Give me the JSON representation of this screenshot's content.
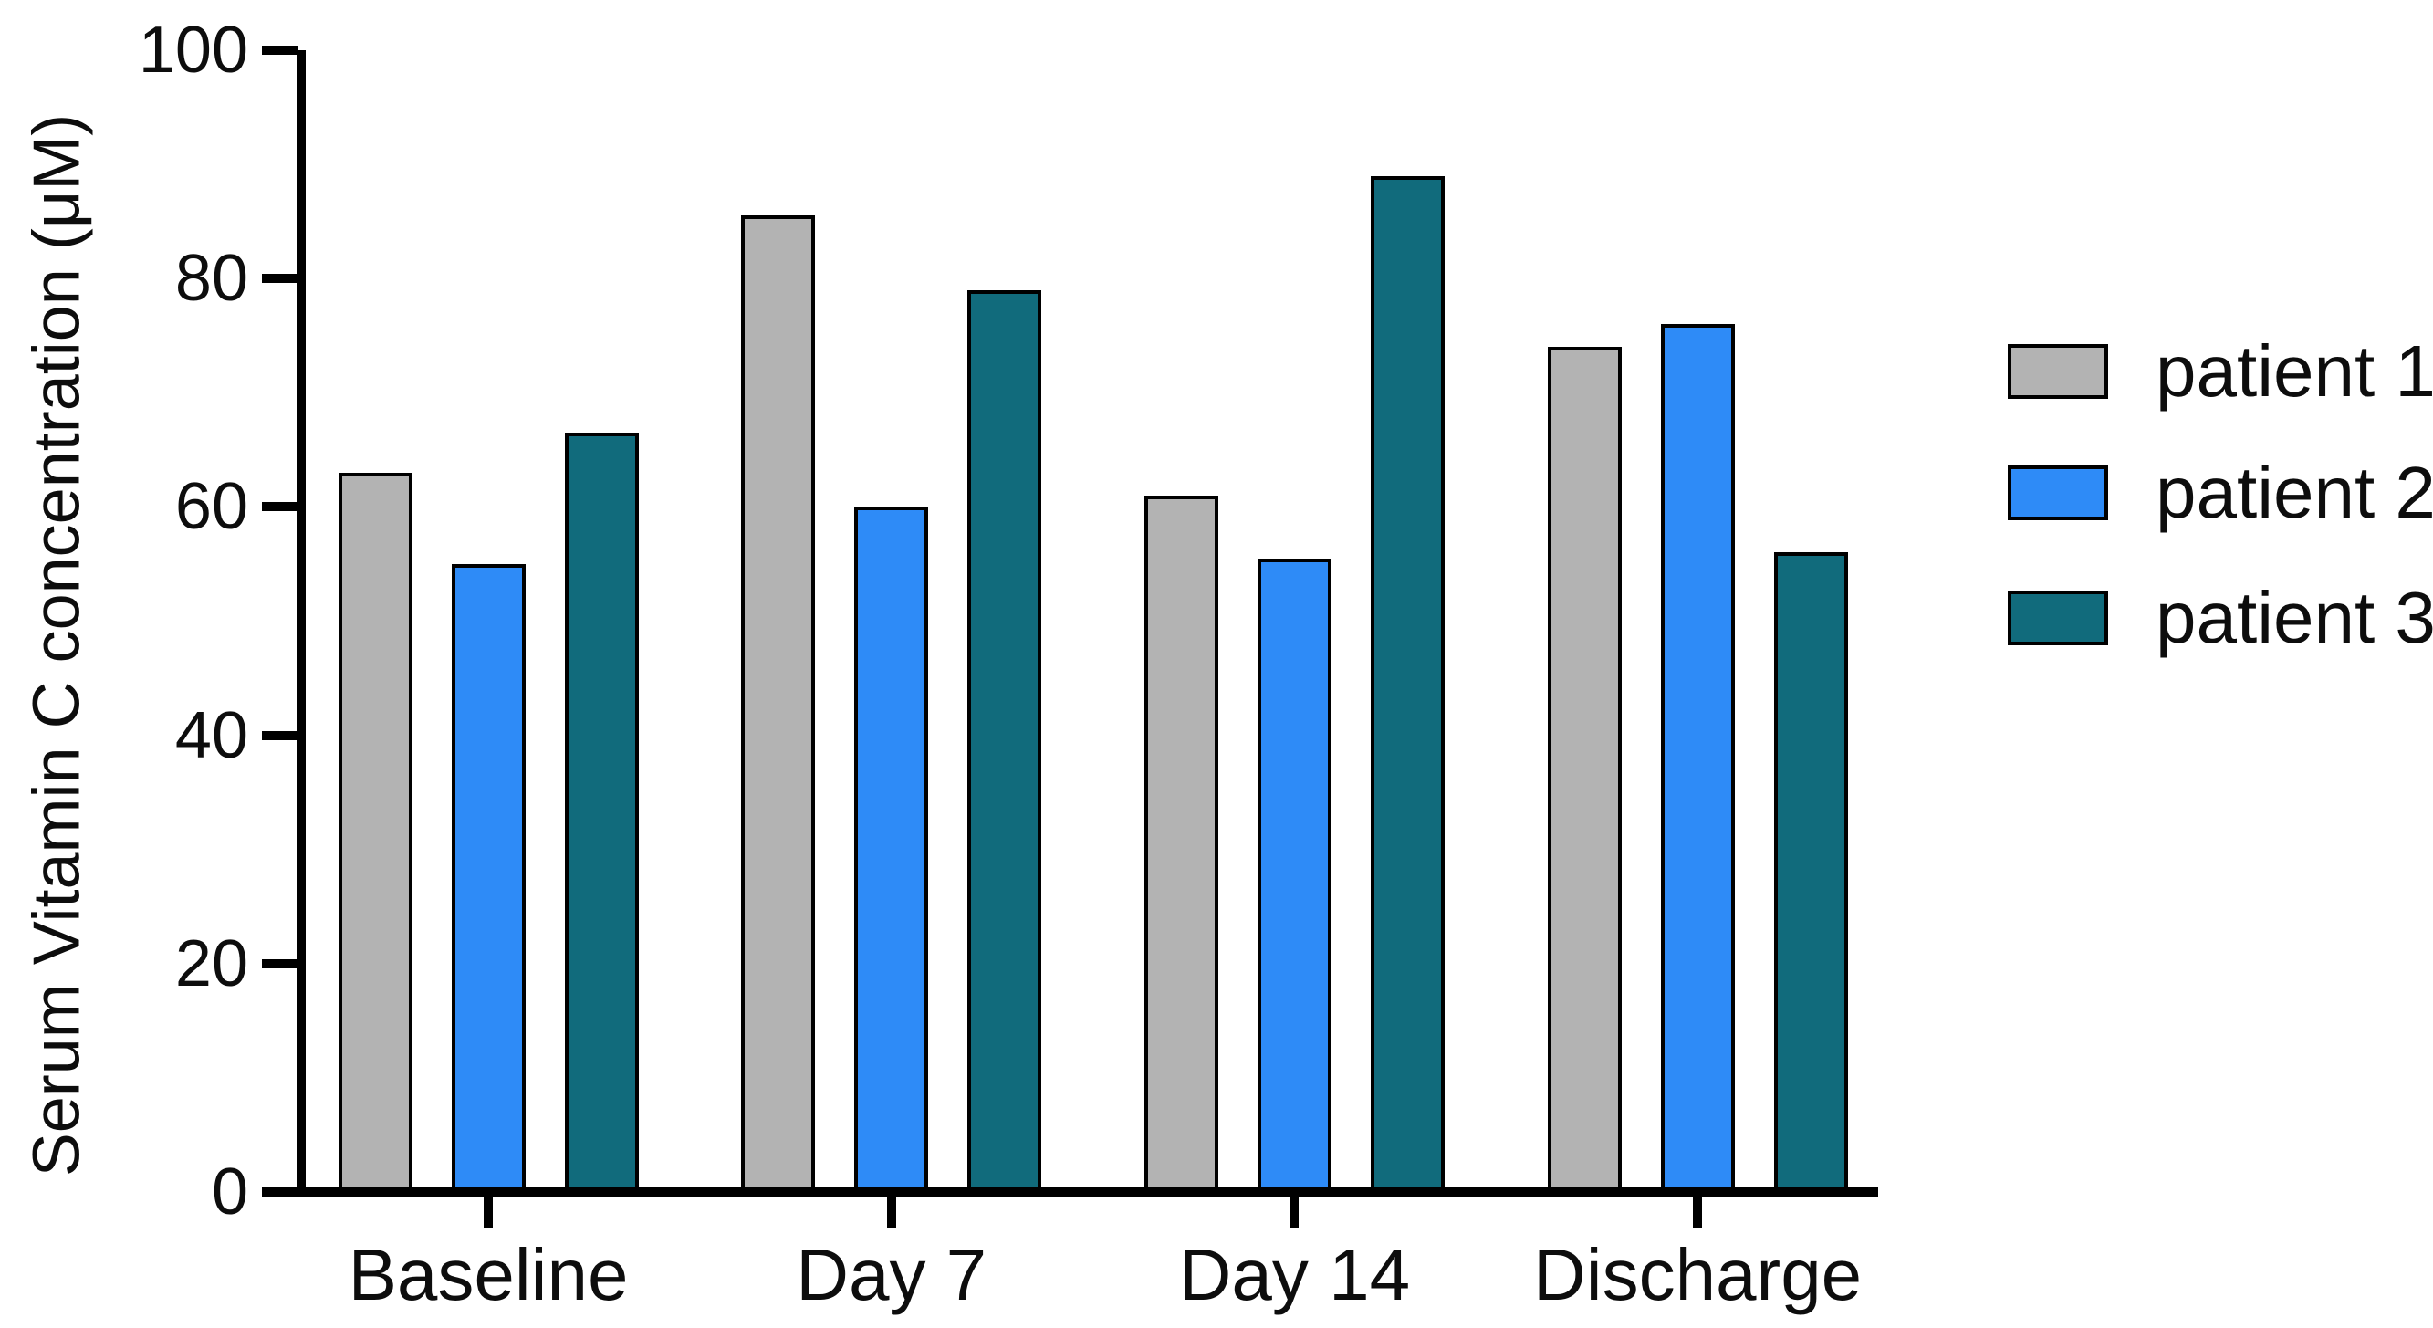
{
  "chart_data": {
    "type": "bar",
    "title": "",
    "ylabel": "Serum Vitamin C concentration (μM)",
    "xlabel": "",
    "categories": [
      "Baseline",
      "Day 7",
      "Day 14",
      "Discharge"
    ],
    "y_ticks": [
      0,
      20,
      40,
      60,
      80,
      100
    ],
    "ylim": [
      0,
      100
    ],
    "grid": false,
    "legend_position": "right-of-plot",
    "bar_outline_color": "#000000",
    "axis_color": "#000000",
    "series": [
      {
        "name": "patient 1",
        "color": "#b3b3b3",
        "values": [
          63,
          85.5,
          61,
          74
        ]
      },
      {
        "name": "patient 2",
        "color": "#2e8bf7",
        "values": [
          55,
          60,
          55.5,
          76
        ]
      },
      {
        "name": "patient 3",
        "color": "#116b7c",
        "values": [
          66.5,
          79,
          89,
          56
        ]
      }
    ]
  }
}
